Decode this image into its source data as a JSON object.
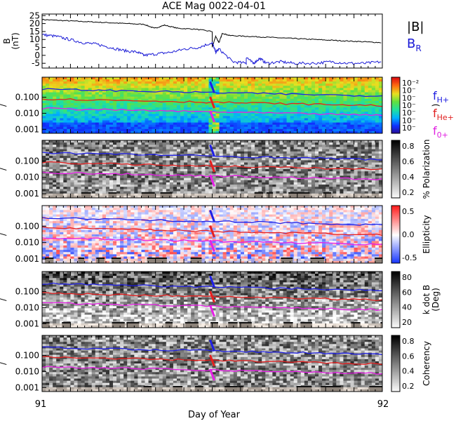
{
  "chart_data": {
    "type": "line",
    "title": "ACE Mag 0022-04-01",
    "xlabel": "Day of Year",
    "xlim": [
      91,
      92
    ],
    "x_ticks": [
      "91",
      "92"
    ],
    "panels": [
      {
        "id": "field",
        "type": "line",
        "ylabel": "B\n(nT)",
        "ylim": [
          -8,
          26
        ],
        "y_ticks": [
          "25",
          "20",
          "15",
          "10",
          "5",
          "0",
          "-5"
        ],
        "legend": [
          {
            "label": "|B|",
            "color": "#000000"
          },
          {
            "label": "B",
            "sub": "R",
            "color": "#1a1ad6"
          }
        ],
        "series": [
          {
            "name": "|B|",
            "color": "#000000",
            "x": [
              91.0,
              91.05,
              91.1,
              91.15,
              91.2,
              91.25,
              91.3,
              91.33,
              91.36,
              91.4,
              91.45,
              91.5,
              91.5,
              91.51,
              91.52,
              91.53,
              91.55,
              91.6,
              91.65,
              91.7,
              91.75,
              91.8,
              91.85,
              91.9,
              91.95,
              92.0
            ],
            "y": [
              22.5,
              22,
              21.5,
              21,
              20.5,
              20,
              19.5,
              17,
              19,
              17,
              16.5,
              15,
              5,
              12,
              8,
              14,
              12.5,
              12,
              11.5,
              11,
              10.5,
              10,
              9.5,
              9,
              8.5,
              8
            ]
          },
          {
            "name": "B_R",
            "color": "#1a1ad6",
            "x": [
              91.0,
              91.04,
              91.08,
              91.12,
              91.16,
              91.2,
              91.24,
              91.28,
              91.3,
              91.34,
              91.38,
              91.42,
              91.46,
              91.5,
              91.51,
              91.52,
              91.56,
              91.6,
              91.6,
              91.62,
              91.64,
              91.66,
              91.7,
              91.74,
              91.8,
              91.85,
              91.9,
              91.95,
              92.0
            ],
            "y": [
              13,
              12,
              10,
              8,
              7,
              5,
              3,
              2,
              0,
              1,
              2,
              4,
              5,
              8,
              2,
              4,
              -4,
              -5,
              -1,
              -5,
              -2,
              -5,
              -4,
              -5,
              -5,
              -4,
              -5,
              -5,
              -4
            ]
          }
        ]
      },
      {
        "id": "power",
        "type": "heatmap",
        "ylabel": "Frequency (Hz)",
        "y_ticks": [
          "0.100",
          "0.010",
          "0.001"
        ],
        "colorbar_ticks": [
          "10⁻²",
          "10⁻",
          "10⁻",
          "10⁻",
          "10⁻",
          "10⁻",
          "10⁻"
        ],
        "colorbar_label": ")",
        "gyro_labels": [
          {
            "text": "f",
            "sub": "H+",
            "color": "#2020e0"
          },
          {
            "text": "f",
            "sub": "He+",
            "color": "#e02020"
          },
          {
            "text": "f",
            "sub": "0+",
            "color": "#e020e0"
          }
        ]
      },
      {
        "id": "polarization",
        "type": "heatmap",
        "ylabel": "Frequency (Hz)",
        "y_ticks": [
          "0.100",
          "0.010",
          "0.001"
        ],
        "colorbar_ticks": [
          "0.8",
          "0.6",
          "0.4",
          "0.2"
        ],
        "colorbar_label": "% Polarization"
      },
      {
        "id": "ellipticity",
        "type": "heatmap",
        "ylabel": "Frequency (Hz)",
        "y_ticks": [
          "0.100",
          "0.010",
          "0.001"
        ],
        "colorbar_ticks": [
          "0.5",
          "0.0",
          "-0.5"
        ],
        "colorbar_label": "Ellipticity"
      },
      {
        "id": "kdotb",
        "type": "heatmap",
        "ylabel": "Frequency (Hz)",
        "y_ticks": [
          "0.100",
          "0.010",
          "0.001"
        ],
        "colorbar_ticks": [
          "80",
          "60",
          "40",
          "20"
        ],
        "colorbar_label": "k dot B\n(Deg)"
      },
      {
        "id": "coherency",
        "type": "heatmap",
        "ylabel": "Frequency (Hz)",
        "y_ticks": [
          "0.100",
          "0.010",
          "0.001"
        ],
        "colorbar_ticks": [
          "0.8",
          "0.6",
          "0.4",
          "0.2"
        ],
        "colorbar_label": "Coherency"
      }
    ],
    "gyrofrequency_lines": {
      "x": [
        91.0,
        92.0
      ],
      "H+": {
        "color": "#1f1fe6",
        "y": [
          0.32,
          0.12
        ]
      },
      "He+": {
        "color": "#e61f1f",
        "y": [
          0.08,
          0.03
        ]
      },
      "O+": {
        "color": "#e61fe6",
        "y": [
          0.02,
          0.0075
        ]
      }
    },
    "colors": {
      "power_scale": [
        "#2a0a8a",
        "#1030ff",
        "#00b0ff",
        "#20e0a0",
        "#60e040",
        "#e8e020",
        "#ff7010",
        "#e01010"
      ],
      "ellipticity_scale": [
        "#1030ff",
        "#ffffff",
        "#ff2020"
      ]
    }
  }
}
